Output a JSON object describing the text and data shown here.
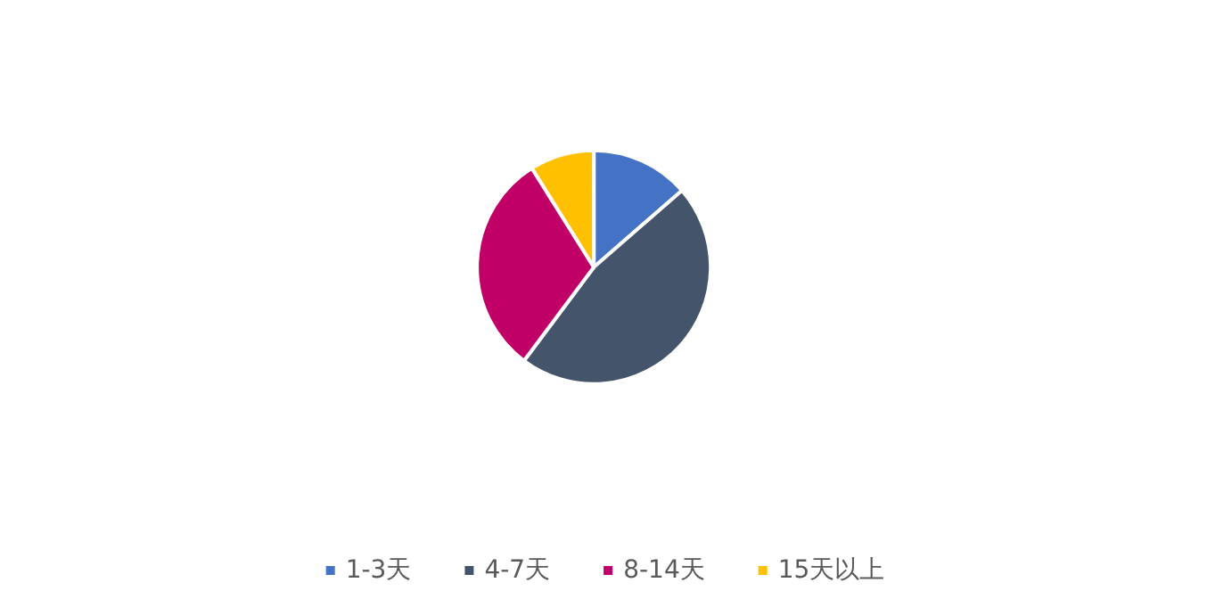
{
  "chart_data": {
    "type": "pie",
    "categories": [
      "1-3天",
      "4-7天",
      "8-14天",
      "15天以上"
    ],
    "values": [
      13.6,
      46.6,
      30.9,
      8.9
    ],
    "colors": [
      "#4472c4",
      "#44546a",
      "#c00066",
      "#ffc000"
    ],
    "legend": "bottom"
  }
}
